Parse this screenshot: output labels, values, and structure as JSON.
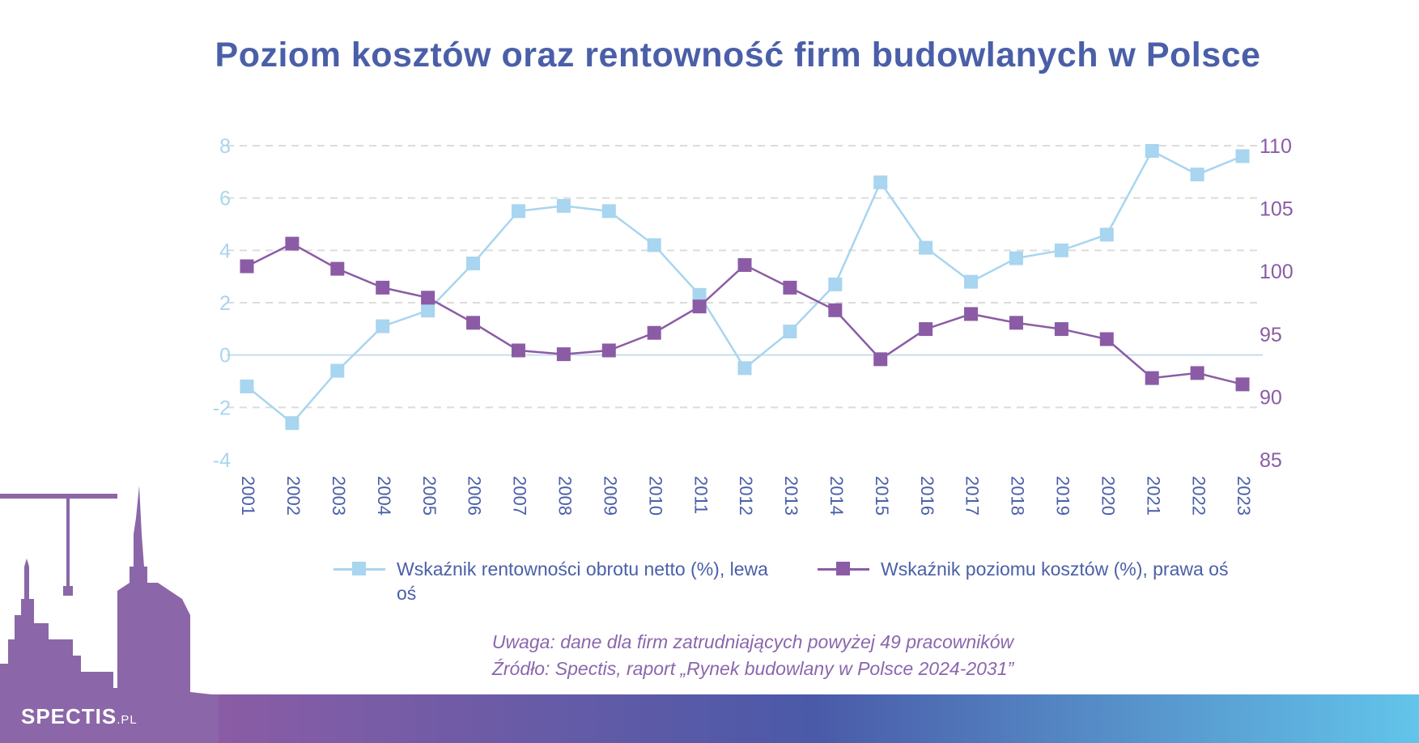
{
  "title": "Poziom kosztów oraz rentowność firm budowlanych w Polsce",
  "colors": {
    "title": "#4a5fa8",
    "series_rentownosc": "#a8d5ef",
    "series_koszty": "#8b5ca5",
    "left_axis_text": "#a8d5ef",
    "right_axis_text": "#8b5ca5",
    "x_axis_text": "#4a5fa8",
    "note_text": "#8a67ad",
    "footer_gradient": [
      "#8b5ca5",
      "#4a5aa8",
      "#62c5ea"
    ]
  },
  "chart_data": {
    "type": "line",
    "title": "Poziom kosztów oraz rentowność firm budowlanych w Polsce",
    "x": [
      "2001",
      "2002",
      "2003",
      "2004",
      "2005",
      "2006",
      "2007",
      "2008",
      "2009",
      "2010",
      "2011",
      "2012",
      "2013",
      "2014",
      "2015",
      "2016",
      "2017",
      "2018",
      "2019",
      "2020",
      "2021",
      "2022",
      "2023"
    ],
    "y_left": {
      "ylim": [
        -4,
        8
      ],
      "ticks": [
        -4,
        -2,
        0,
        2,
        4,
        6,
        8
      ]
    },
    "y_right": {
      "ylim": [
        85,
        110
      ],
      "ticks": [
        85,
        90,
        95,
        100,
        105,
        110
      ]
    },
    "grid": "horizontal dashed",
    "series": [
      {
        "name": "Wskaźnik rentowności obrotu netto (%), lewa oś",
        "axis": "left",
        "values": [
          -1.2,
          -2.6,
          -0.6,
          1.1,
          1.7,
          3.5,
          5.5,
          5.7,
          5.5,
          4.2,
          2.3,
          -0.5,
          0.9,
          2.7,
          6.6,
          4.1,
          2.8,
          3.7,
          4.0,
          4.6,
          7.8,
          6.9,
          7.6
        ]
      },
      {
        "name": "Wskaźnik poziomu kosztów (%), prawa oś",
        "axis": "right",
        "values": [
          100.4,
          102.2,
          100.2,
          98.7,
          97.9,
          95.9,
          93.7,
          93.4,
          93.7,
          95.1,
          97.2,
          100.5,
          98.7,
          96.9,
          93.0,
          95.4,
          96.6,
          95.9,
          95.4,
          94.6,
          91.5,
          91.9,
          91.0
        ]
      }
    ],
    "legend": [
      "Wskaźnik rentowności obrotu netto (%),\nlewa oś",
      "Wskaźnik poziomu kosztów (%),\nprawa oś"
    ],
    "legend_position": "bottom"
  },
  "legend": {
    "item1": "Wskaźnik rentowności obrotu netto (%), lewa oś",
    "item2": "Wskaźnik poziomu kosztów (%), prawa oś"
  },
  "notes": {
    "note": "Uwaga: dane dla firm zatrudniających powyżej 49 pracowników",
    "source": "Źródło: Spectis, raport „Rynek budowlany w Polsce 2024-2031”"
  },
  "brand": {
    "name": "SPECTIS",
    "suffix": ".PL"
  }
}
